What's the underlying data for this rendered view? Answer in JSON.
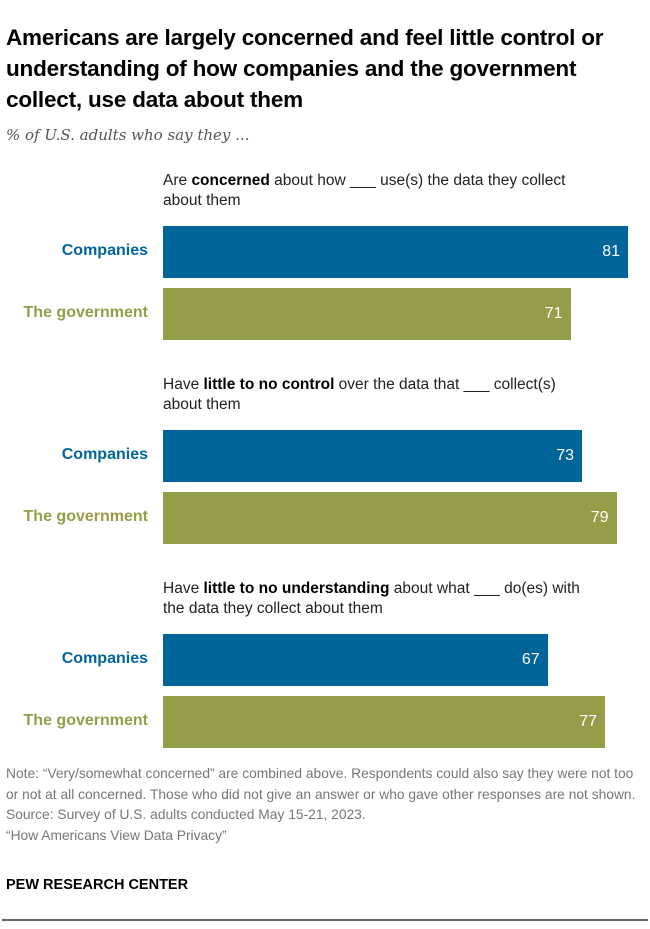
{
  "title": "Americans are largely concerned and feel little control or understanding of how companies and the government collect, use data about them",
  "subtitle": "% of U.S. adults who say they ...",
  "colors": {
    "companies": "#006699",
    "government": "#949D48"
  },
  "chart_data": {
    "type": "bar",
    "orientation": "horizontal",
    "xlim": [
      0,
      81
    ],
    "grid": false,
    "groups": [
      {
        "question": {
          "pre": "Are ",
          "bold": "concerned",
          "post": " about how ___ use(s) the data they collect about them"
        },
        "categories": [
          "Companies",
          "The government"
        ],
        "values": [
          81,
          71
        ]
      },
      {
        "question": {
          "pre": "Have ",
          "bold": "little to no control",
          "post": " over the data that ___ collect(s) about them"
        },
        "categories": [
          "Companies",
          "The government"
        ],
        "values": [
          73,
          79
        ]
      },
      {
        "question": {
          "pre": "Have ",
          "bold": "little to no understanding",
          "post": " about what ___ do(es) with the data they collect about them"
        },
        "categories": [
          "Companies",
          "The government"
        ],
        "values": [
          67,
          77
        ]
      }
    ]
  },
  "note": "Note: “Very/somewhat concerned” are combined above. Respondents could also say they were not too or not at all concerned. Those who did not give an answer or who gave other responses are not shown.",
  "source": "Source: Survey of U.S. adults conducted May 15-21, 2023.",
  "report": "“How Americans View Data Privacy”",
  "brand": "PEW RESEARCH CENTER"
}
